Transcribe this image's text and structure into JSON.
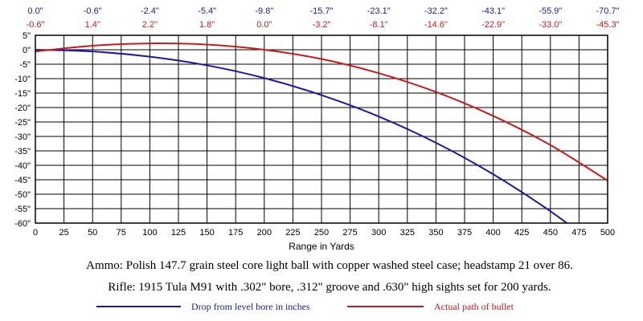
{
  "chart_data": {
    "type": "line",
    "xlabel": "Range in Yards",
    "xlim": [
      0,
      500
    ],
    "ylim": [
      -60,
      5
    ],
    "x_ticks": [
      "0",
      "25",
      "50",
      "75",
      "100",
      "125",
      "150",
      "175",
      "200",
      "225",
      "250",
      "275",
      "300",
      "325",
      "350",
      "375",
      "400",
      "425",
      "450",
      "475",
      "500"
    ],
    "y_ticks": [
      "5\"",
      "0\"",
      "-5\"",
      "-10\"",
      "-15\"",
      "-20\"",
      "-25\"",
      "-30\"",
      "-35\"",
      "-40\"",
      "-45\"",
      "-50\"",
      "-55\"",
      "-60\""
    ],
    "grid": true,
    "top_labels": {
      "drop": [
        "0.0\"",
        "-0.6\"",
        "-2.4\"",
        "-5.4\"",
        "-9.8\"",
        "-15.7\"",
        "-23.1\"",
        "-32.2\"",
        "-43.1\"",
        "-55.9\"",
        "-70.7\""
      ],
      "path": [
        "-0.6\"",
        "1.4\"",
        "2.2\"",
        "1.8\"",
        "0.0\"",
        "-3.2\"",
        "-8.1\"",
        "-14.6\"",
        "-22.9\"",
        "-33.0\"",
        "-45.3\""
      ]
    },
    "series": [
      {
        "name": "Drop from level bore in inches",
        "color": "#1a1aa6",
        "x": [
          0,
          50,
          100,
          150,
          200,
          250,
          300,
          350,
          400,
          450,
          500
        ],
        "y": [
          0.0,
          -0.6,
          -2.4,
          -5.4,
          -9.8,
          -15.7,
          -23.1,
          -32.2,
          -43.1,
          -55.9,
          -70.7
        ]
      },
      {
        "name": "Actual path of bullet",
        "color": "#cc1a1a",
        "x": [
          0,
          50,
          100,
          150,
          200,
          250,
          300,
          350,
          400,
          450,
          500
        ],
        "y": [
          -0.6,
          1.4,
          2.2,
          1.8,
          0.0,
          -3.2,
          -8.1,
          -14.6,
          -22.9,
          -33.0,
          -45.3
        ]
      }
    ]
  },
  "captions": {
    "ammo": "Ammo:  Polish 147.7 grain steel core light ball with copper washed steel case; headstamp 21 over 86.",
    "rifle": "Rifle:  1915 Tula M91 with .302\" bore, .312\" groove and .630\" high sights set for 200 yards."
  },
  "legend": {
    "drop": "Drop from level bore in inches",
    "path": "Actual path of bullet"
  },
  "colors": {
    "drop": "#1a1aa6",
    "path": "#cc1a1a"
  }
}
